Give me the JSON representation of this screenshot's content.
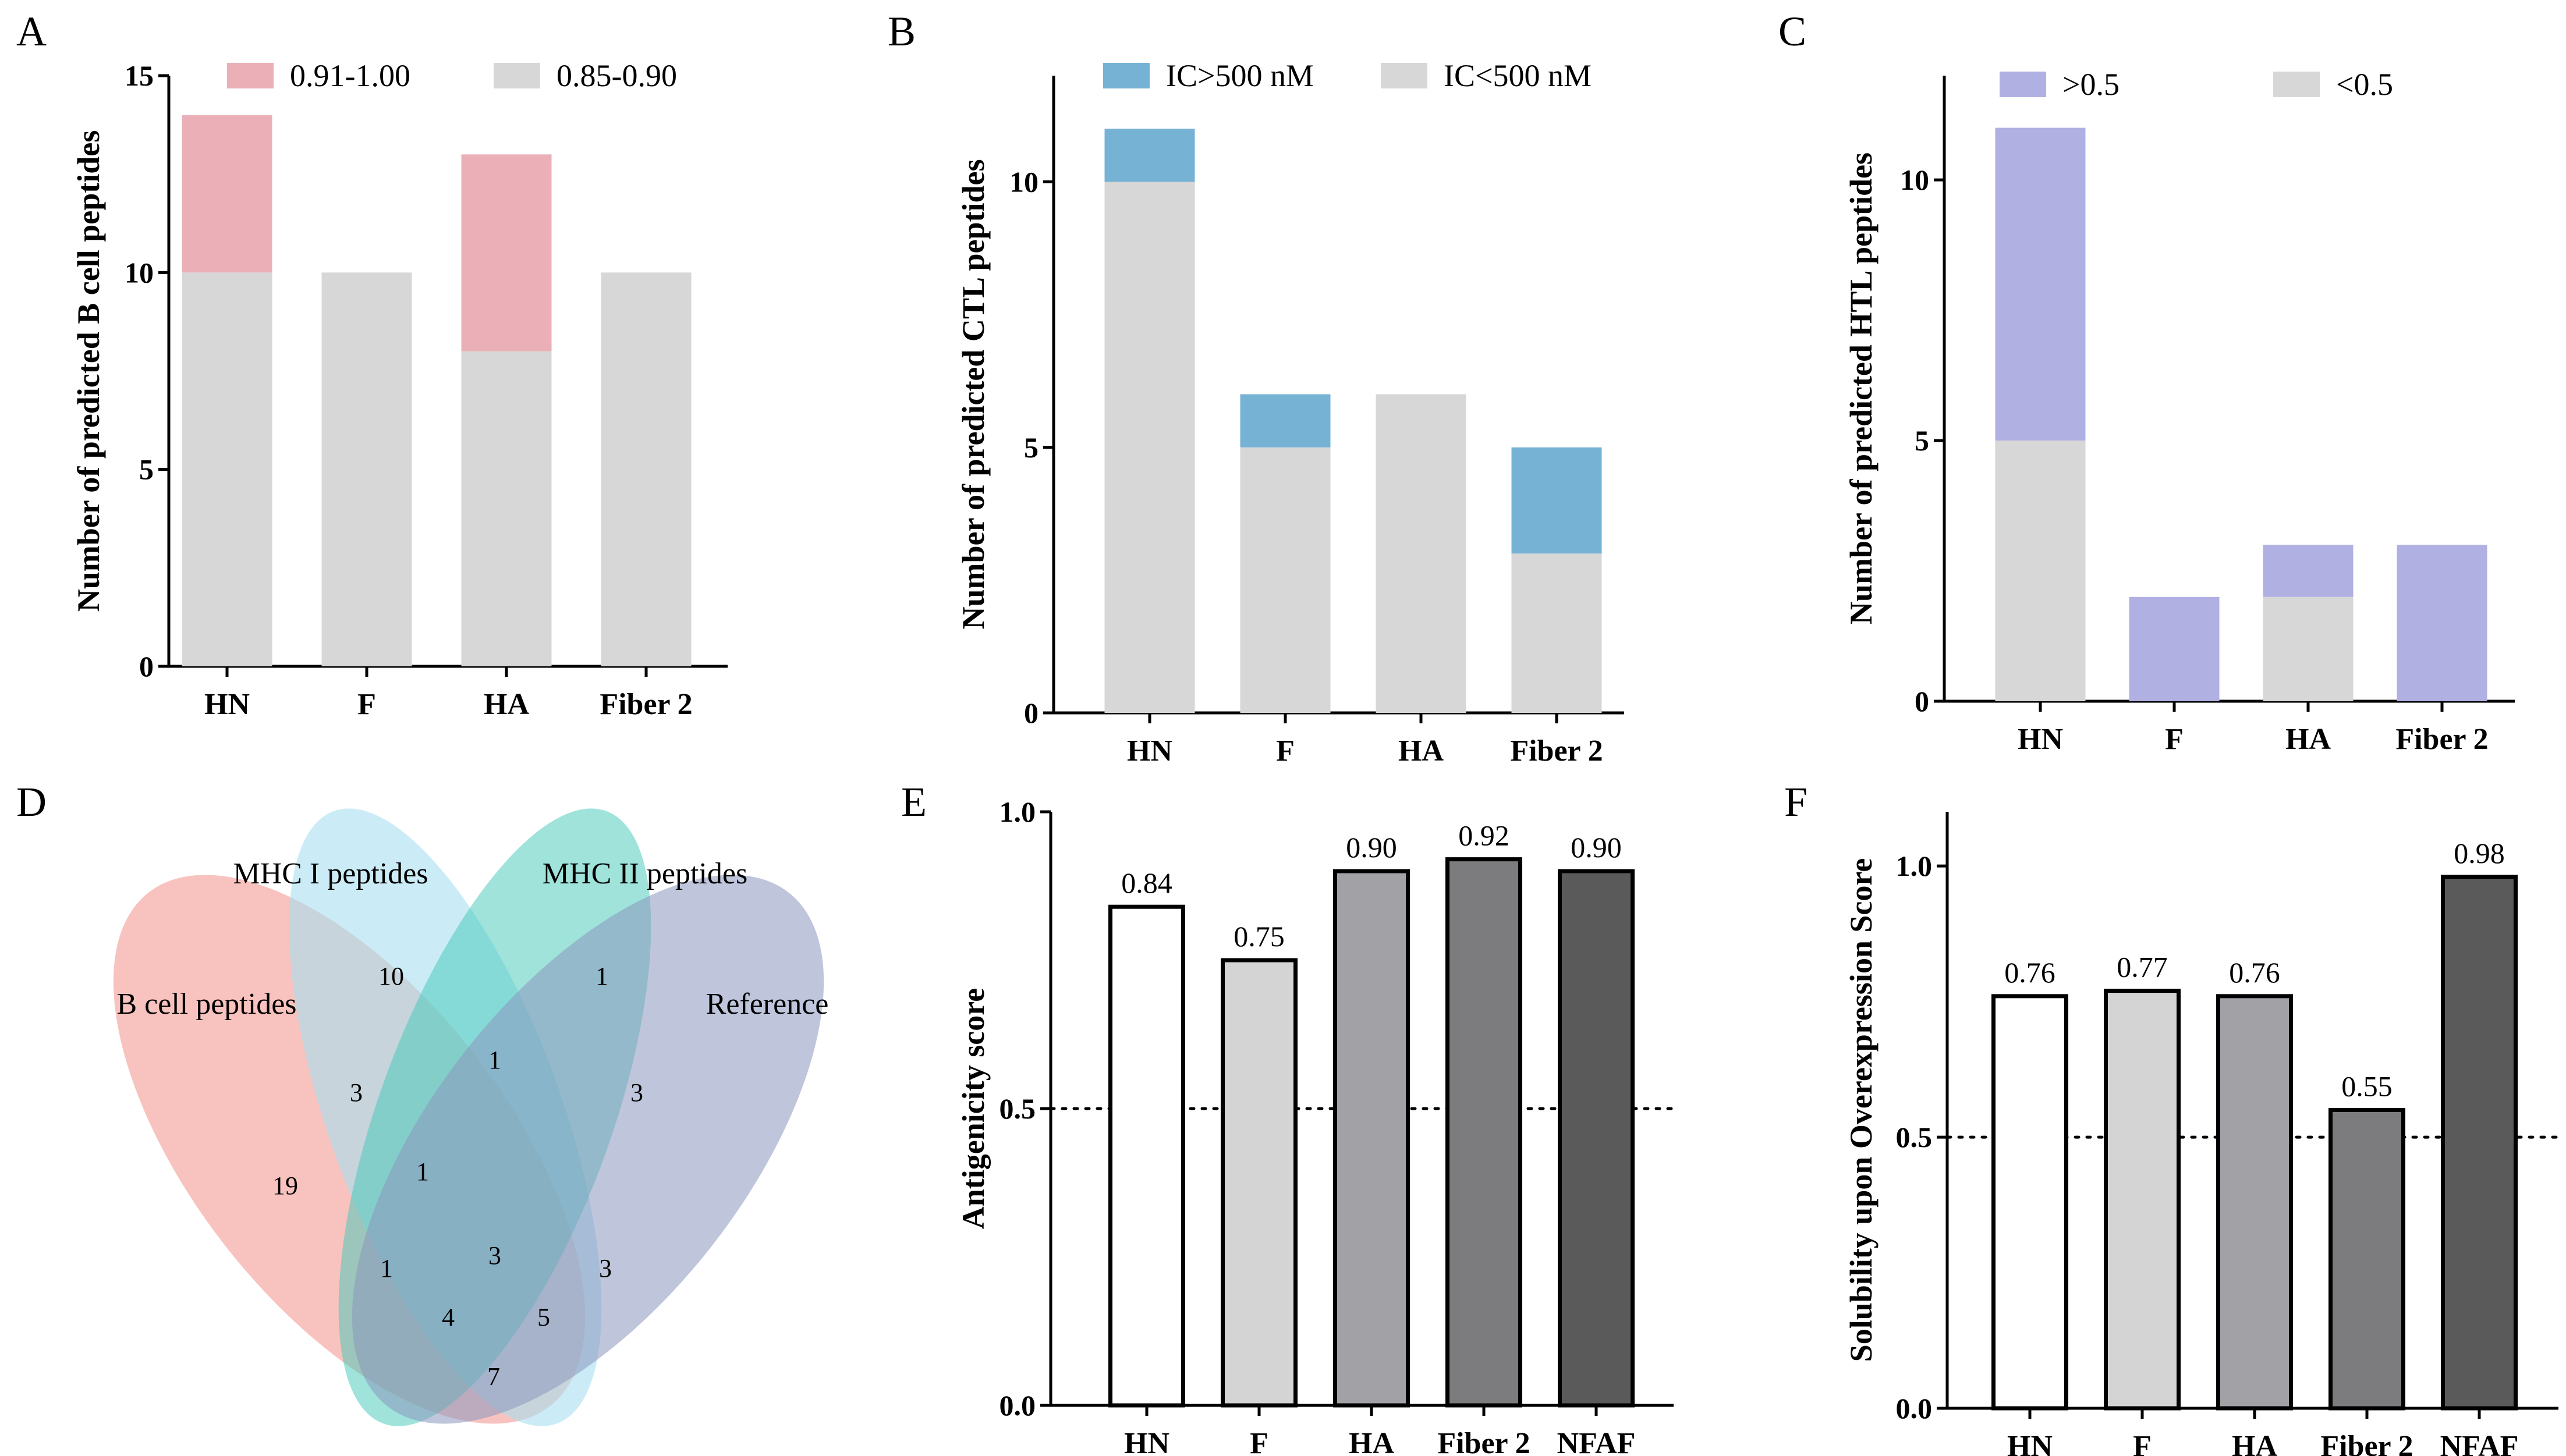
{
  "figure": {
    "background": "#ffffff"
  },
  "colors": {
    "light_gray": "#d7d7d7",
    "pink": "#ebb0b7",
    "blue": "#76b2d4",
    "purple": "#b0b0e3",
    "bar_white": "#ffffff",
    "bar_g1": "#d4d4d4",
    "bar_g2": "#a1a1a6",
    "bar_g3": "#7c7c7e",
    "bar_g4": "#5a5a5a",
    "venn_b": "#f4a39b",
    "venn_mhc1": "#a8dff0",
    "venn_mhc2": "#7fd9c9",
    "venn_ref": "#a9b3cf"
  },
  "panels": {
    "A": "A",
    "B": "B",
    "C": "C",
    "D": "D",
    "E": "E",
    "F": "F"
  },
  "chart_data": [
    {
      "id": "A",
      "type": "bar",
      "stacked": true,
      "categories": [
        "HN",
        "F",
        "HA",
        "Fiber 2"
      ],
      "series": [
        {
          "name": "0.85-0.90",
          "values": [
            10,
            10,
            8,
            10
          ],
          "color_key": "light_gray"
        },
        {
          "name": "0.91-1.00",
          "values": [
            4,
            0,
            5,
            0
          ],
          "color_key": "pink"
        }
      ],
      "legend_order": [
        "0.91-1.00",
        "0.85-0.90"
      ],
      "ylabel": "Number of predicted B cell peptides",
      "ylim": [
        0,
        15
      ],
      "yticks": [
        0,
        5,
        10,
        15
      ],
      "grid": false
    },
    {
      "id": "B",
      "type": "bar",
      "stacked": true,
      "categories": [
        "HN",
        "F",
        "HA",
        "Fiber 2"
      ],
      "series": [
        {
          "name": "IC<500 nM",
          "values": [
            10,
            5,
            6,
            3
          ],
          "color_key": "light_gray"
        },
        {
          "name": "IC>500 nM",
          "values": [
            1,
            1,
            0,
            2
          ],
          "color_key": "blue"
        }
      ],
      "legend_order": [
        "IC>500 nM",
        "IC<500 nM"
      ],
      "ylabel": "Number of predicted CTL peptides",
      "ylim": [
        0,
        12
      ],
      "yticks": [
        0,
        5,
        10
      ],
      "grid": false
    },
    {
      "id": "C",
      "type": "bar",
      "stacked": true,
      "categories": [
        "HN",
        "F",
        "HA",
        "Fiber 2"
      ],
      "series": [
        {
          "name": "<0.5",
          "values": [
            5,
            0,
            2,
            0
          ],
          "color_key": "light_gray"
        },
        {
          "name": ">0.5",
          "values": [
            6,
            2,
            1,
            3
          ],
          "color_key": "purple"
        }
      ],
      "legend_order": [
        ">0.5",
        "<0.5"
      ],
      "ylabel": "Number of predicted HTL peptides",
      "ylim": [
        0,
        12
      ],
      "yticks": [
        0,
        5,
        10
      ],
      "grid": false
    },
    {
      "id": "E",
      "type": "bar",
      "categories": [
        "HN",
        "F",
        "HA",
        "Fiber 2",
        "NFAF"
      ],
      "values": [
        0.84,
        0.75,
        0.9,
        0.92,
        0.9
      ],
      "value_labels": [
        "0.84",
        "0.75",
        "0.90",
        "0.92",
        "0.90"
      ],
      "bar_color_keys": [
        "bar_white",
        "bar_g1",
        "bar_g2",
        "bar_g3",
        "bar_g4"
      ],
      "ylabel": "Antigenicity score",
      "ylim": [
        0,
        1.0
      ],
      "yticks": [
        0.0,
        0.5,
        1.0
      ],
      "ytick_labels": [
        "0.0",
        "0.5",
        "1.0"
      ],
      "threshold": 0.5,
      "grid": false
    },
    {
      "id": "F",
      "type": "bar",
      "categories": [
        "HN",
        "F",
        "HA",
        "Fiber 2",
        "NFAF"
      ],
      "values": [
        0.76,
        0.77,
        0.76,
        0.55,
        0.98
      ],
      "value_labels": [
        "0.76",
        "0.77",
        "0.76",
        "0.55",
        "0.98"
      ],
      "bar_color_keys": [
        "bar_white",
        "bar_g1",
        "bar_g2",
        "bar_g3",
        "bar_g4"
      ],
      "ylabel": "Solubility upon Overexpression Score",
      "ylim": [
        0,
        1.1
      ],
      "yticks": [
        0.0,
        0.5,
        1.0
      ],
      "ytick_labels": [
        "0.0",
        "0.5",
        "1.0"
      ],
      "threshold": 0.5,
      "grid": false
    }
  ],
  "venn": {
    "sets": [
      "B cell peptides",
      "MHC I peptides",
      "MHC II peptides",
      "Reference"
    ],
    "regions": {
      "b_only": 19,
      "mhc1_only": 10,
      "mhc2_only": 1,
      "b_mhc1": 3,
      "mhc1_mhc2": 1,
      "mhc2_ref": 3,
      "b_mhc1_mhc2": 1,
      "mhc1_mhc2_ref": 3,
      "b_mhc1_mhc2_ref": 3,
      "b_mhc1_ref": 1,
      "mhc1_ref": 3,
      "b_mhc2_ref": 4,
      "b_ref_mhc1": 5,
      "b_ref": 7
    }
  }
}
